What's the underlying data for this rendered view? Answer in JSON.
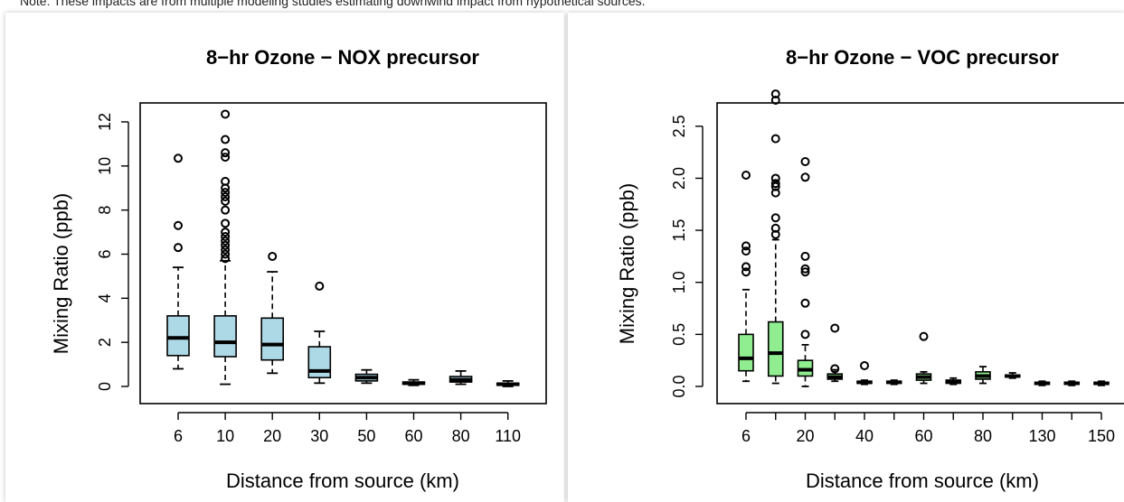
{
  "note": "Note: These impacts are from multiple modeling studies estimating downwind impact from hypothetical sources.",
  "colors": {
    "nox_box_fill": "#add8e6",
    "voc_box_fill": "#90ee90",
    "stroke": "#000000"
  },
  "chart_data": [
    {
      "type": "boxplot",
      "title": "8−hr Ozone − NOX precursor",
      "xlabel": "Distance from source (km)",
      "ylabel": "Mixing Ratio (ppb)",
      "ylim": [
        0,
        12
      ],
      "yticks": [
        0,
        2,
        4,
        6,
        8,
        10,
        12
      ],
      "box_fill": "#add8e6",
      "categories": [
        "6",
        "10",
        "20",
        "30",
        "50",
        "60",
        "80",
        "110"
      ],
      "xtick_labels": [
        "6",
        "10",
        "20",
        "30",
        "50",
        "60",
        "80",
        "110"
      ],
      "boxes": [
        {
          "x": "6",
          "whisker_low": 0.8,
          "q1": 1.4,
          "median": 2.2,
          "q3": 3.2,
          "whisker_high": 5.4,
          "outliers": [
            6.3,
            7.3,
            10.35
          ]
        },
        {
          "x": "10",
          "whisker_low": 0.1,
          "q1": 1.35,
          "median": 2.0,
          "q3": 3.2,
          "whisker_high": 5.7,
          "outliers": [
            5.8,
            6.0,
            6.2,
            6.4,
            6.6,
            6.8,
            7.0,
            7.4,
            8.0,
            8.4,
            8.6,
            8.8,
            9.0,
            9.3,
            10.4,
            10.6,
            11.2,
            12.35
          ]
        },
        {
          "x": "20",
          "whisker_low": 0.6,
          "q1": 1.2,
          "median": 1.9,
          "q3": 3.1,
          "whisker_high": 5.2,
          "outliers": [
            5.9
          ]
        },
        {
          "x": "30",
          "whisker_low": 0.15,
          "q1": 0.4,
          "median": 0.7,
          "q3": 1.8,
          "whisker_high": 2.5,
          "outliers": [
            4.55
          ]
        },
        {
          "x": "50",
          "whisker_low": 0.15,
          "q1": 0.25,
          "median": 0.4,
          "q3": 0.55,
          "whisker_high": 0.75,
          "outliers": []
        },
        {
          "x": "60",
          "whisker_low": 0.05,
          "q1": 0.1,
          "median": 0.15,
          "q3": 0.2,
          "whisker_high": 0.3,
          "outliers": []
        },
        {
          "x": "80",
          "whisker_low": 0.1,
          "q1": 0.2,
          "median": 0.3,
          "q3": 0.45,
          "whisker_high": 0.7,
          "outliers": []
        },
        {
          "x": "110",
          "whisker_low": 0.0,
          "q1": 0.05,
          "median": 0.1,
          "q3": 0.15,
          "whisker_high": 0.25,
          "outliers": []
        }
      ]
    },
    {
      "type": "boxplot",
      "title": "8−hr Ozone − VOC precursor",
      "xlabel": "Distance from source (km)",
      "ylabel": "Mixing Ratio (ppb)",
      "ylim": [
        0,
        2.75
      ],
      "yticks": [
        0.0,
        0.5,
        1.0,
        1.5,
        2.0,
        2.5
      ],
      "ytick_labels": [
        "0.0",
        "0.5",
        "1.0",
        "1.5",
        "2.0",
        "2.5"
      ],
      "box_fill": "#90ee90",
      "categories": [
        "6",
        "10",
        "20",
        "30",
        "40",
        "50",
        "60",
        "70",
        "80",
        "100",
        "130",
        "140",
        "150"
      ],
      "xtick_labels": [
        "6",
        "",
        "20",
        "",
        "40",
        "",
        "60",
        "",
        "80",
        "",
        "130",
        "",
        "150"
      ],
      "boxes": [
        {
          "x": "6",
          "whisker_low": 0.05,
          "q1": 0.15,
          "median": 0.27,
          "q3": 0.5,
          "whisker_high": 0.93,
          "outliers": [
            1.1,
            1.15,
            1.3,
            1.35,
            2.03
          ]
        },
        {
          "x": "10",
          "whisker_low": 0.03,
          "q1": 0.1,
          "median": 0.32,
          "q3": 0.62,
          "whisker_high": 1.41,
          "outliers": [
            1.46,
            1.52,
            1.62,
            1.86,
            1.92,
            1.95,
            2.0,
            2.38,
            2.75,
            2.81
          ]
        },
        {
          "x": "20",
          "whisker_low": 0.0,
          "q1": 0.1,
          "median": 0.16,
          "q3": 0.25,
          "whisker_high": 0.4,
          "outliers": [
            0.5,
            0.8,
            1.1,
            1.13,
            1.25,
            2.01,
            2.16
          ]
        },
        {
          "x": "30",
          "whisker_low": 0.05,
          "q1": 0.07,
          "median": 0.09,
          "q3": 0.12,
          "whisker_high": 0.16,
          "outliers": [
            0.17,
            0.56
          ]
        },
        {
          "x": "40",
          "whisker_low": 0.02,
          "q1": 0.03,
          "median": 0.04,
          "q3": 0.05,
          "whisker_high": 0.06,
          "outliers": [
            0.2
          ]
        },
        {
          "x": "50",
          "whisker_low": 0.02,
          "q1": 0.03,
          "median": 0.04,
          "q3": 0.05,
          "whisker_high": 0.06,
          "outliers": []
        },
        {
          "x": "60",
          "whisker_low": 0.03,
          "q1": 0.06,
          "median": 0.09,
          "q3": 0.12,
          "whisker_high": 0.14,
          "outliers": [
            0.48
          ]
        },
        {
          "x": "70",
          "whisker_low": 0.02,
          "q1": 0.03,
          "median": 0.05,
          "q3": 0.06,
          "whisker_high": 0.08,
          "outliers": []
        },
        {
          "x": "80",
          "whisker_low": 0.03,
          "q1": 0.07,
          "median": 0.1,
          "q3": 0.14,
          "whisker_high": 0.19,
          "outliers": []
        },
        {
          "x": "100",
          "whisker_low": 0.08,
          "q1": 0.09,
          "median": 0.1,
          "q3": 0.11,
          "whisker_high": 0.13,
          "outliers": []
        },
        {
          "x": "130",
          "whisker_low": 0.01,
          "q1": 0.02,
          "median": 0.03,
          "q3": 0.04,
          "whisker_high": 0.05,
          "outliers": []
        },
        {
          "x": "140",
          "whisker_low": 0.01,
          "q1": 0.02,
          "median": 0.03,
          "q3": 0.04,
          "whisker_high": 0.05,
          "outliers": []
        },
        {
          "x": "150",
          "whisker_low": 0.01,
          "q1": 0.02,
          "median": 0.03,
          "q3": 0.04,
          "whisker_high": 0.05,
          "outliers": []
        }
      ]
    }
  ]
}
